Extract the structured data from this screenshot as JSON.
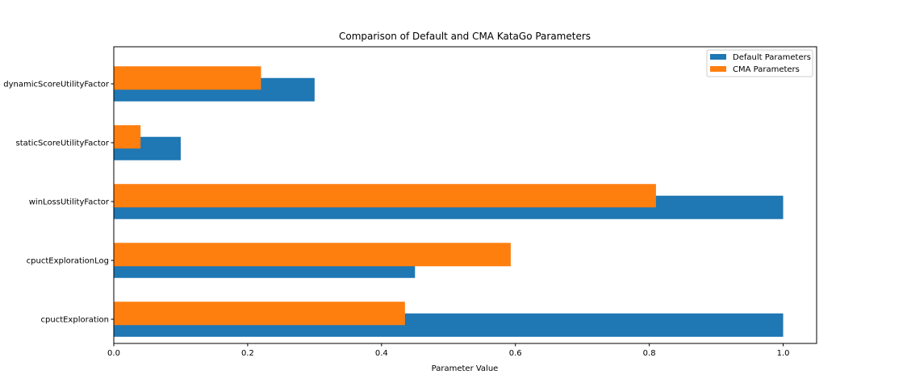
{
  "chart_data": {
    "type": "bar",
    "orientation": "horizontal",
    "title": "Comparison of Default and CMA KataGo Parameters",
    "xlabel": "Parameter Value",
    "ylabel": "",
    "xlim": [
      0,
      1.05
    ],
    "xticks": [
      0.0,
      0.2,
      0.4,
      0.6,
      0.8,
      1.0
    ],
    "xtick_labels": [
      "0.0",
      "0.2",
      "0.4",
      "0.6",
      "0.8",
      "1.0"
    ],
    "categories": [
      "cpuctExploration",
      "cpuctExplorationLog",
      "winLossUtilityFactor",
      "staticScoreUtilityFactor",
      "dynamicScoreUtilityFactor"
    ],
    "series": [
      {
        "name": "Default Parameters",
        "color": "#1f77b4",
        "values": [
          1.0,
          0.45,
          1.0,
          0.1,
          0.3
        ]
      },
      {
        "name": "CMA Parameters",
        "color": "#ff7f0e",
        "values": [
          0.435,
          0.593,
          0.81,
          0.04,
          0.22
        ]
      }
    ],
    "grid": false,
    "legend": "top-right"
  }
}
